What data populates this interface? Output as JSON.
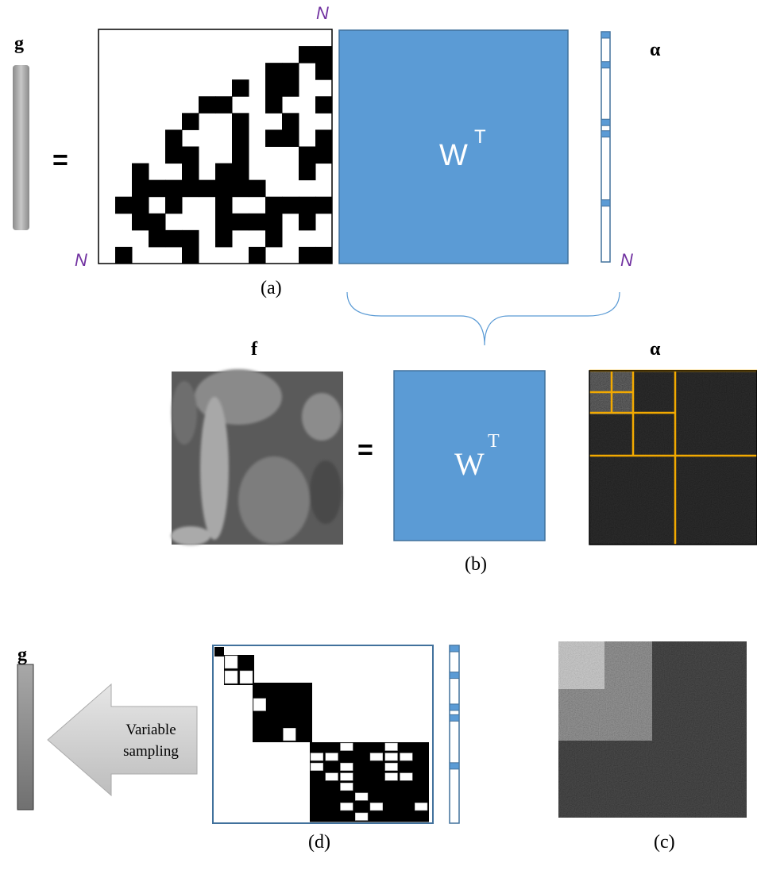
{
  "panel_a": {
    "vector_label": "g",
    "equals": "=",
    "size_label_top": "N",
    "size_label_left": "N",
    "size_label_right": "N",
    "transform": "W",
    "transform_superscript": "T",
    "coefficients_label": "α",
    "caption": "(a)"
  },
  "panel_b": {
    "image_label": "f",
    "equals": "=",
    "transform": "W",
    "transform_superscript": "T",
    "coefficients_label": "α",
    "caption": "(b)"
  },
  "panel_d": {
    "vector_label": "g",
    "arrow_line_1": "Variable",
    "arrow_line_2": "sampling",
    "caption": "(d)"
  },
  "panel_c": {
    "caption": "(c)"
  }
}
